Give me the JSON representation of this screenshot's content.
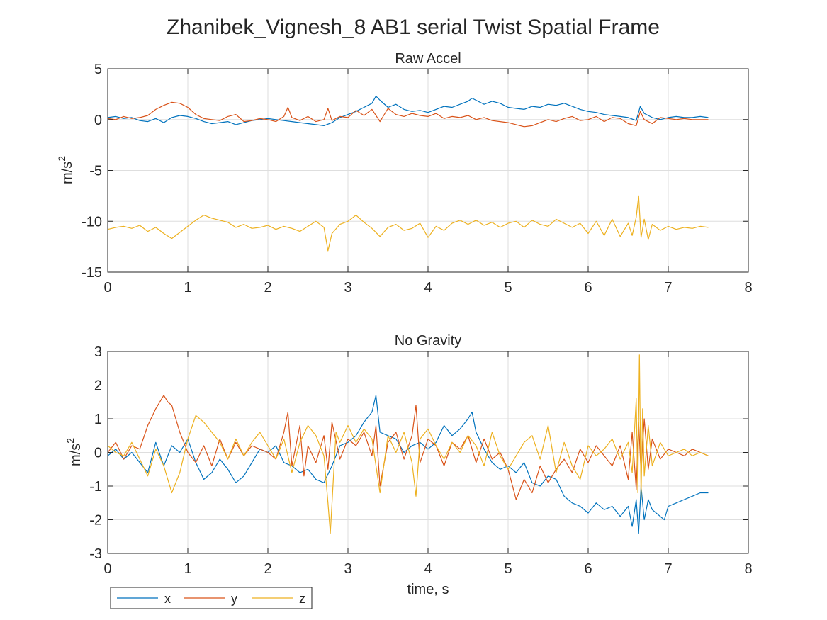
{
  "figure": {
    "title": "Zhanibek_Vignesh_8 AB1 serial Twist Spatial Frame",
    "background": "#ffffff"
  },
  "colors": {
    "x": "#0072BD",
    "y": "#D95319",
    "z": "#EDB120",
    "axis": "#262626",
    "grid": "#DEDEDE"
  },
  "legend": {
    "placement": "below-left",
    "entries": [
      "x",
      "y",
      "z"
    ]
  },
  "chart_data": [
    {
      "type": "line",
      "title": "Raw Accel",
      "xlabel": "",
      "ylabel": "m/s",
      "ylabel_sup": "2",
      "xlim": [
        0,
        8
      ],
      "ylim": [
        -15,
        5
      ],
      "xticks": [
        "0",
        "1",
        "2",
        "3",
        "4",
        "5",
        "6",
        "7",
        "8"
      ],
      "yticks": [
        "-15",
        "-10",
        "-5",
        "0",
        "5"
      ],
      "grid": true,
      "series": [
        {
          "name": "x",
          "color": "#0072BD",
          "x": [
            0,
            0.1,
            0.2,
            0.3,
            0.4,
            0.5,
            0.6,
            0.7,
            0.8,
            0.9,
            1.0,
            1.1,
            1.2,
            1.3,
            1.4,
            1.5,
            1.6,
            1.7,
            1.8,
            1.9,
            2.0,
            2.1,
            2.2,
            2.3,
            2.4,
            2.5,
            2.6,
            2.7,
            2.8,
            2.9,
            3.0,
            3.1,
            3.2,
            3.3,
            3.35,
            3.4,
            3.5,
            3.6,
            3.7,
            3.8,
            3.9,
            4.0,
            4.1,
            4.2,
            4.3,
            4.4,
            4.5,
            4.55,
            4.6,
            4.7,
            4.8,
            4.9,
            5.0,
            5.1,
            5.2,
            5.3,
            5.4,
            5.5,
            5.6,
            5.7,
            5.8,
            5.9,
            6.0,
            6.1,
            6.2,
            6.3,
            6.4,
            6.5,
            6.6,
            6.65,
            6.7,
            6.8,
            6.9,
            7.0,
            7.1,
            7.2,
            7.3,
            7.4,
            7.5
          ],
          "y": [
            0.2,
            0.3,
            0.1,
            0.2,
            -0.1,
            -0.2,
            0.1,
            -0.3,
            0.2,
            0.4,
            0.3,
            0.1,
            -0.2,
            -0.4,
            -0.3,
            -0.2,
            -0.5,
            -0.3,
            -0.1,
            0.0,
            0.1,
            0.0,
            -0.1,
            -0.2,
            -0.3,
            -0.4,
            -0.5,
            -0.6,
            -0.3,
            0.2,
            0.5,
            0.8,
            1.2,
            1.6,
            2.3,
            1.9,
            1.2,
            1.5,
            1.0,
            0.8,
            0.9,
            0.7,
            1.0,
            1.3,
            1.2,
            1.5,
            1.8,
            2.1,
            1.9,
            1.5,
            1.8,
            1.6,
            1.2,
            1.1,
            1.0,
            1.3,
            1.2,
            1.5,
            1.4,
            1.6,
            1.3,
            1.0,
            0.8,
            0.7,
            0.5,
            0.4,
            0.3,
            0.2,
            -0.1,
            1.3,
            0.6,
            0.2,
            0.0,
            0.2,
            0.3,
            0.2,
            0.2,
            0.3,
            0.2
          ]
        },
        {
          "name": "y",
          "color": "#D95319",
          "x": [
            0,
            0.1,
            0.2,
            0.3,
            0.4,
            0.5,
            0.6,
            0.7,
            0.8,
            0.9,
            1.0,
            1.1,
            1.2,
            1.3,
            1.4,
            1.5,
            1.6,
            1.7,
            1.8,
            1.9,
            2.0,
            2.1,
            2.2,
            2.25,
            2.3,
            2.4,
            2.5,
            2.6,
            2.7,
            2.75,
            2.8,
            2.9,
            3.0,
            3.1,
            3.2,
            3.3,
            3.4,
            3.5,
            3.6,
            3.7,
            3.8,
            3.9,
            4.0,
            4.1,
            4.2,
            4.3,
            4.4,
            4.5,
            4.6,
            4.7,
            4.8,
            4.9,
            5.0,
            5.1,
            5.2,
            5.3,
            5.4,
            5.5,
            5.6,
            5.7,
            5.8,
            5.9,
            6.0,
            6.1,
            6.2,
            6.3,
            6.4,
            6.5,
            6.6,
            6.65,
            6.7,
            6.8,
            6.9,
            7.0,
            7.1,
            7.2,
            7.3,
            7.4,
            7.5
          ],
          "y": [
            0.1,
            0.0,
            0.3,
            0.1,
            0.2,
            0.4,
            1.0,
            1.4,
            1.7,
            1.6,
            1.2,
            0.5,
            0.1,
            0.0,
            -0.1,
            0.3,
            0.5,
            -0.2,
            -0.1,
            0.1,
            0.0,
            -0.2,
            0.3,
            1.2,
            0.2,
            -0.1,
            0.3,
            -0.2,
            0.0,
            1.1,
            -0.1,
            0.3,
            0.2,
            0.9,
            0.4,
            1.0,
            -0.2,
            1.1,
            0.5,
            0.3,
            0.6,
            0.4,
            0.3,
            0.6,
            0.1,
            0.3,
            0.2,
            0.4,
            0.0,
            0.2,
            -0.1,
            -0.2,
            -0.3,
            -0.5,
            -0.7,
            -0.6,
            -0.3,
            0.0,
            -0.2,
            0.1,
            0.3,
            -0.1,
            0.0,
            0.3,
            -0.2,
            0.2,
            0.1,
            -0.4,
            -0.6,
            0.8,
            0.0,
            -0.4,
            0.2,
            0.1,
            0.0,
            0.1,
            0.0,
            0.0,
            0.0
          ]
        },
        {
          "name": "z",
          "color": "#EDB120",
          "x": [
            0,
            0.1,
            0.2,
            0.3,
            0.4,
            0.5,
            0.6,
            0.7,
            0.8,
            0.9,
            1.0,
            1.1,
            1.2,
            1.3,
            1.4,
            1.5,
            1.6,
            1.7,
            1.8,
            1.9,
            2.0,
            2.1,
            2.2,
            2.3,
            2.4,
            2.5,
            2.6,
            2.7,
            2.75,
            2.8,
            2.9,
            3.0,
            3.1,
            3.2,
            3.3,
            3.4,
            3.5,
            3.6,
            3.7,
            3.8,
            3.9,
            4.0,
            4.1,
            4.2,
            4.3,
            4.4,
            4.5,
            4.6,
            4.7,
            4.8,
            4.9,
            5.0,
            5.1,
            5.2,
            5.3,
            5.4,
            5.5,
            5.6,
            5.7,
            5.8,
            5.9,
            6.0,
            6.1,
            6.2,
            6.3,
            6.4,
            6.5,
            6.55,
            6.6,
            6.63,
            6.66,
            6.7,
            6.75,
            6.8,
            6.9,
            7.0,
            7.1,
            7.2,
            7.3,
            7.4,
            7.5
          ],
          "y": [
            -10.8,
            -10.6,
            -10.5,
            -10.7,
            -10.4,
            -11.0,
            -10.6,
            -11.2,
            -11.7,
            -11.1,
            -10.5,
            -9.9,
            -9.4,
            -9.7,
            -9.9,
            -10.1,
            -10.6,
            -10.3,
            -10.7,
            -10.6,
            -10.4,
            -10.8,
            -10.5,
            -10.7,
            -11.0,
            -10.5,
            -10.0,
            -10.6,
            -12.9,
            -11.2,
            -10.3,
            -10.0,
            -9.4,
            -10.1,
            -10.7,
            -11.5,
            -10.6,
            -10.3,
            -10.9,
            -10.7,
            -10.2,
            -11.6,
            -10.5,
            -10.9,
            -10.2,
            -9.9,
            -10.3,
            -9.9,
            -10.4,
            -10.1,
            -10.6,
            -10.2,
            -10.0,
            -10.6,
            -9.9,
            -10.3,
            -10.5,
            -9.8,
            -10.2,
            -10.6,
            -10.2,
            -11.2,
            -10.0,
            -11.4,
            -9.8,
            -11.5,
            -10.2,
            -11.4,
            -9.6,
            -7.5,
            -11.6,
            -9.8,
            -11.8,
            -10.3,
            -10.9,
            -10.5,
            -10.8,
            -10.6,
            -10.7,
            -10.5,
            -10.6
          ]
        }
      ]
    },
    {
      "type": "line",
      "title": "No Gravity",
      "xlabel": "time, s",
      "ylabel": "m/s",
      "ylabel_sup": "2",
      "xlim": [
        0,
        8
      ],
      "ylim": [
        -3,
        3
      ],
      "xticks": [
        "0",
        "1",
        "2",
        "3",
        "4",
        "5",
        "6",
        "7",
        "8"
      ],
      "yticks": [
        "-3",
        "-2",
        "-1",
        "0",
        "1",
        "2",
        "3"
      ],
      "grid": true,
      "series": [
        {
          "name": "x",
          "color": "#0072BD",
          "x": [
            0,
            0.1,
            0.2,
            0.3,
            0.4,
            0.5,
            0.6,
            0.7,
            0.8,
            0.9,
            1.0,
            1.1,
            1.2,
            1.3,
            1.4,
            1.5,
            1.6,
            1.7,
            1.8,
            1.9,
            2.0,
            2.1,
            2.2,
            2.3,
            2.4,
            2.5,
            2.6,
            2.7,
            2.8,
            2.9,
            3.0,
            3.1,
            3.2,
            3.3,
            3.35,
            3.4,
            3.5,
            3.6,
            3.7,
            3.8,
            3.9,
            4.0,
            4.1,
            4.2,
            4.3,
            4.4,
            4.5,
            4.55,
            4.6,
            4.7,
            4.8,
            4.9,
            5.0,
            5.1,
            5.2,
            5.3,
            5.4,
            5.5,
            5.6,
            5.7,
            5.8,
            5.9,
            6.0,
            6.1,
            6.2,
            6.3,
            6.4,
            6.5,
            6.55,
            6.6,
            6.63,
            6.66,
            6.7,
            6.75,
            6.8,
            6.9,
            6.95,
            7.0,
            7.1,
            7.2,
            7.3,
            7.4,
            7.5
          ],
          "y": [
            -0.1,
            0.1,
            -0.2,
            0.0,
            -0.3,
            -0.6,
            0.3,
            -0.4,
            0.2,
            0.0,
            0.4,
            -0.3,
            -0.8,
            -0.6,
            -0.2,
            -0.5,
            -0.9,
            -0.7,
            -0.3,
            0.1,
            0.0,
            0.2,
            -0.3,
            -0.4,
            -0.6,
            -0.5,
            -0.8,
            -0.9,
            -0.4,
            0.2,
            0.3,
            0.5,
            0.9,
            1.2,
            1.7,
            0.6,
            0.5,
            0.4,
            0.0,
            0.2,
            0.3,
            0.1,
            0.3,
            0.8,
            0.5,
            0.7,
            1.0,
            1.2,
            0.6,
            0.1,
            -0.3,
            -0.5,
            -0.4,
            -0.6,
            -0.3,
            -0.9,
            -1.0,
            -0.7,
            -0.8,
            -1.3,
            -1.5,
            -1.6,
            -1.8,
            -1.5,
            -1.7,
            -1.6,
            -1.9,
            -1.6,
            -2.2,
            -1.4,
            -2.4,
            -1.0,
            -2.0,
            -1.4,
            -1.7,
            -1.9,
            -2.0,
            -1.6,
            -1.5,
            -1.4,
            -1.3,
            -1.2,
            -1.2
          ]
        },
        {
          "name": "y",
          "color": "#D95319",
          "x": [
            0,
            0.1,
            0.2,
            0.3,
            0.4,
            0.5,
            0.6,
            0.7,
            0.75,
            0.8,
            0.9,
            1.0,
            1.1,
            1.2,
            1.3,
            1.4,
            1.5,
            1.6,
            1.7,
            1.8,
            1.9,
            2.0,
            2.1,
            2.2,
            2.25,
            2.3,
            2.4,
            2.45,
            2.5,
            2.6,
            2.7,
            2.75,
            2.8,
            2.9,
            3.0,
            3.1,
            3.2,
            3.3,
            3.35,
            3.4,
            3.5,
            3.6,
            3.7,
            3.8,
            3.85,
            3.9,
            4.0,
            4.1,
            4.2,
            4.3,
            4.4,
            4.5,
            4.6,
            4.7,
            4.8,
            4.9,
            5.0,
            5.1,
            5.2,
            5.3,
            5.4,
            5.5,
            5.6,
            5.7,
            5.8,
            5.9,
            6.0,
            6.1,
            6.2,
            6.3,
            6.4,
            6.5,
            6.55,
            6.6,
            6.63,
            6.66,
            6.7,
            6.75,
            6.8,
            6.9,
            7.0,
            7.1,
            7.2,
            7.3,
            7.4,
            7.5
          ],
          "y": [
            0.0,
            0.3,
            -0.2,
            0.2,
            0.1,
            0.8,
            1.3,
            1.7,
            1.5,
            1.4,
            0.6,
            0.0,
            -0.3,
            0.2,
            -0.4,
            0.4,
            -0.2,
            0.3,
            -0.1,
            0.2,
            0.1,
            0.0,
            -0.2,
            0.6,
            1.2,
            -0.4,
            0.8,
            -0.7,
            0.2,
            -0.3,
            0.5,
            -0.5,
            0.9,
            -0.2,
            0.4,
            0.2,
            0.6,
            -0.1,
            0.8,
            -1.0,
            0.3,
            0.6,
            -0.2,
            0.5,
            1.4,
            -0.3,
            0.4,
            0.2,
            -0.4,
            0.3,
            0.1,
            0.5,
            -0.3,
            0.4,
            -0.2,
            0.0,
            -0.5,
            -1.4,
            -0.8,
            -1.2,
            -0.4,
            -0.9,
            -0.5,
            -0.2,
            -0.6,
            0.1,
            -0.3,
            0.2,
            -0.1,
            -0.4,
            0.2,
            -0.8,
            0.6,
            -1.1,
            0.9,
            -0.6,
            1.0,
            -0.5,
            0.4,
            -0.2,
            0.1,
            0.0,
            -0.1,
            0.1,
            0.0,
            -0.1
          ]
        },
        {
          "name": "z",
          "color": "#EDB120",
          "x": [
            0,
            0.1,
            0.2,
            0.3,
            0.4,
            0.5,
            0.6,
            0.7,
            0.8,
            0.9,
            1.0,
            1.1,
            1.2,
            1.3,
            1.4,
            1.5,
            1.6,
            1.7,
            1.8,
            1.9,
            2.0,
            2.1,
            2.2,
            2.3,
            2.4,
            2.5,
            2.6,
            2.7,
            2.75,
            2.78,
            2.85,
            2.9,
            3.0,
            3.1,
            3.2,
            3.3,
            3.4,
            3.5,
            3.6,
            3.7,
            3.8,
            3.85,
            3.9,
            4.0,
            4.1,
            4.2,
            4.3,
            4.4,
            4.5,
            4.6,
            4.7,
            4.8,
            4.9,
            5.0,
            5.1,
            5.2,
            5.3,
            5.4,
            5.5,
            5.6,
            5.7,
            5.8,
            5.9,
            6.0,
            6.1,
            6.2,
            6.3,
            6.4,
            6.5,
            6.55,
            6.6,
            6.62,
            6.64,
            6.66,
            6.68,
            6.7,
            6.75,
            6.8,
            6.9,
            7.0,
            7.1,
            7.2,
            7.3,
            7.4,
            7.5
          ],
          "y": [
            0.2,
            0.0,
            -0.1,
            0.3,
            -0.2,
            -0.7,
            0.1,
            -0.4,
            -1.2,
            -0.6,
            0.4,
            1.1,
            0.9,
            0.6,
            0.3,
            -0.2,
            0.4,
            -0.1,
            0.3,
            0.6,
            0.2,
            -0.2,
            0.4,
            -0.6,
            0.3,
            0.8,
            0.5,
            -0.1,
            -1.5,
            -2.4,
            0.6,
            0.3,
            0.8,
            0.3,
            0.7,
            0.4,
            -1.2,
            0.5,
            0.0,
            0.6,
            -0.3,
            -1.3,
            0.4,
            0.7,
            0.2,
            -0.2,
            0.3,
            0.0,
            0.5,
            0.2,
            -0.4,
            0.6,
            -0.1,
            -0.5,
            -0.1,
            0.3,
            0.5,
            -0.2,
            0.8,
            -0.6,
            0.3,
            -0.4,
            -0.8,
            0.2,
            -0.1,
            0.1,
            0.4,
            -0.2,
            0.3,
            -0.6,
            1.6,
            -1.2,
            2.9,
            -1.4,
            1.3,
            -0.7,
            0.8,
            -0.4,
            0.3,
            -0.1,
            0.0,
            0.1,
            -0.1,
            0.0,
            -0.1
          ]
        }
      ]
    }
  ]
}
